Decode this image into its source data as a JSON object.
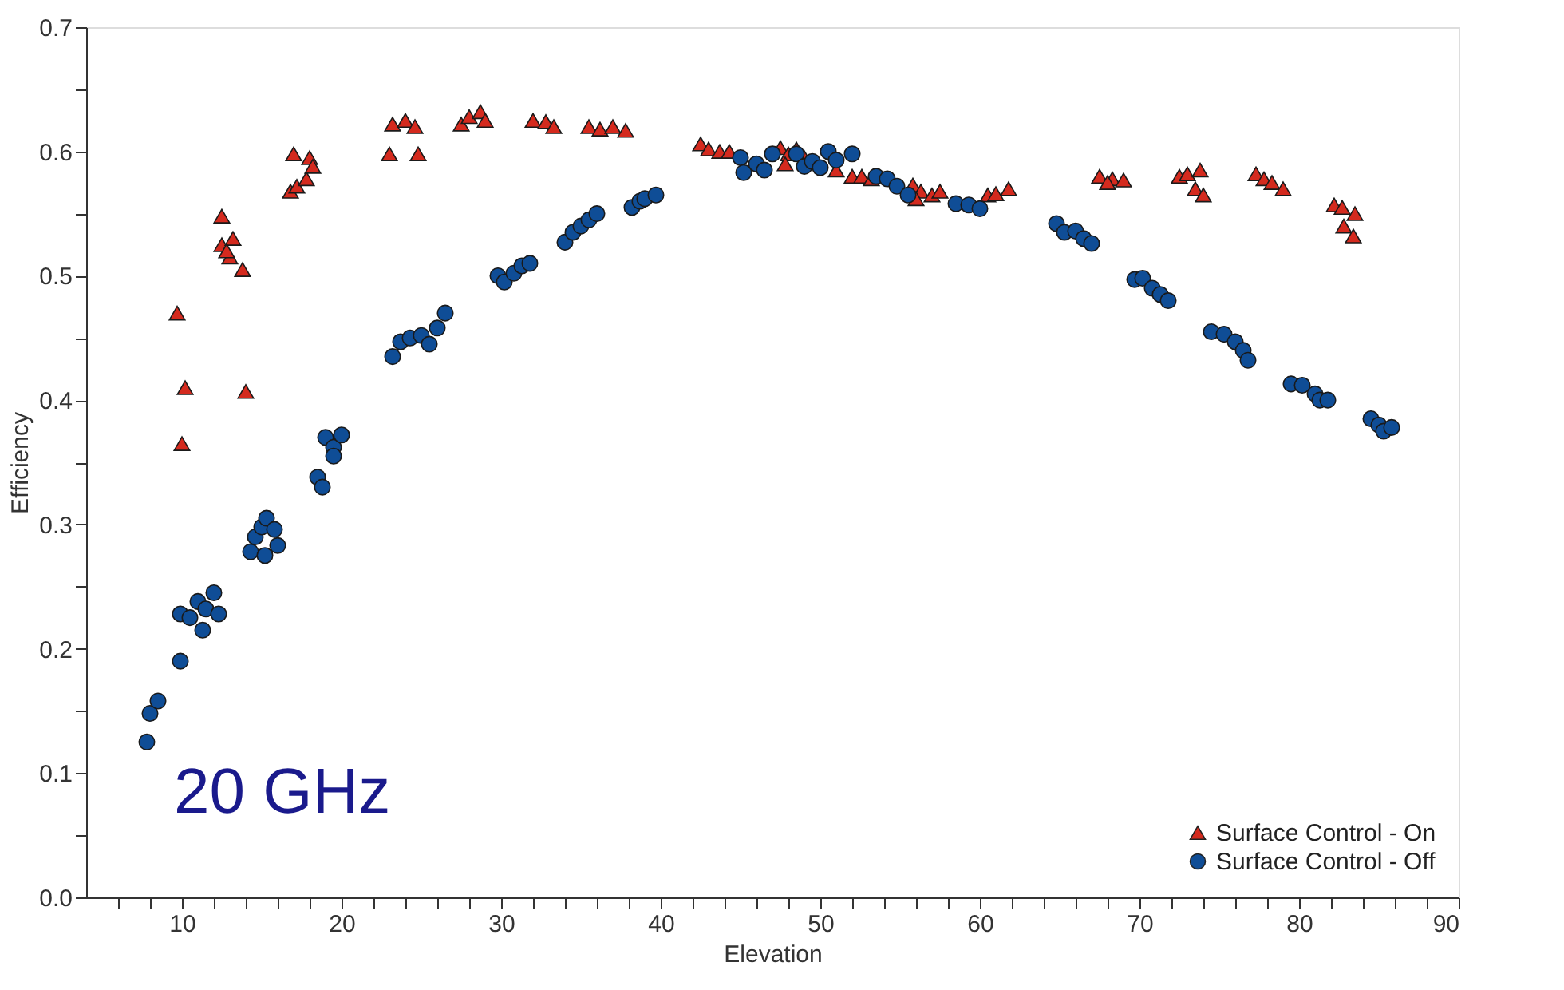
{
  "chart_data": {
    "type": "scatter",
    "xlabel": "Elevation",
    "ylabel": "Efficiency",
    "annotations": [
      "20 GHz"
    ],
    "xlim": [
      4,
      90
    ],
    "ylim": [
      0,
      0.7
    ],
    "xticks": [
      {
        "value": 6,
        "label": null
      },
      {
        "value": 8,
        "label": null
      },
      10,
      {
        "value": 12,
        "label": null
      },
      {
        "value": 14,
        "label": null
      },
      {
        "value": 16,
        "label": null
      },
      {
        "value": 18,
        "label": null
      },
      20,
      {
        "value": 22,
        "label": null
      },
      {
        "value": 24,
        "label": null
      },
      {
        "value": 26,
        "label": null
      },
      {
        "value": 28,
        "label": null
      },
      30,
      {
        "value": 32,
        "label": null
      },
      {
        "value": 34,
        "label": null
      },
      {
        "value": 36,
        "label": null
      },
      {
        "value": 38,
        "label": null
      },
      40,
      {
        "value": 42,
        "label": null
      },
      {
        "value": 44,
        "label": null
      },
      {
        "value": 46,
        "label": null
      },
      {
        "value": 48,
        "label": null
      },
      50,
      {
        "value": 52,
        "label": null
      },
      {
        "value": 54,
        "label": null
      },
      {
        "value": 56,
        "label": null
      },
      {
        "value": 58,
        "label": null
      },
      60,
      {
        "value": 62,
        "label": null
      },
      {
        "value": 64,
        "label": null
      },
      {
        "value": 66,
        "label": null
      },
      {
        "value": 68,
        "label": null
      },
      70,
      {
        "value": 72,
        "label": null
      },
      {
        "value": 74,
        "label": null
      },
      {
        "value": 76,
        "label": null
      },
      {
        "value": 78,
        "label": null
      },
      80,
      {
        "value": 82,
        "label": null
      },
      {
        "value": 84,
        "label": null
      },
      {
        "value": 86,
        "label": null
      },
      {
        "value": 88,
        "label": null
      },
      90
    ],
    "yticks": [
      {
        "value": 0,
        "label": "0.0"
      },
      {
        "value": 0.05,
        "label": null
      },
      0.1,
      {
        "value": 0.15,
        "label": null
      },
      0.2,
      {
        "value": 0.25,
        "label": null
      },
      0.3,
      {
        "value": 0.35,
        "label": null
      },
      0.4,
      {
        "value": 0.45,
        "label": null
      },
      0.5,
      {
        "value": 0.55,
        "label": null
      },
      0.6,
      {
        "value": 0.65,
        "label": null
      },
      0.7
    ],
    "grid": false,
    "legend": "bottom right",
    "series": [
      {
        "name": "Surface Control - On",
        "color": "#d42a1e",
        "marker": "triangle",
        "x": [
          9.7,
          10.2,
          10.0,
          14,
          12.5,
          12.5,
          13.2,
          13,
          13.8,
          12.8,
          16.8,
          17.2,
          17.8,
          17,
          18,
          18.2,
          23,
          24.8,
          23.2,
          24,
          24.6,
          27.5,
          28,
          28.7,
          29,
          32,
          32.8,
          33.3,
          35.5,
          36.2,
          37,
          37.8,
          42.5,
          43,
          43.7,
          44.3,
          47.5,
          48,
          48.5,
          47.8,
          49,
          51,
          52,
          52.6,
          53.2,
          55.8,
          56.3,
          57,
          56,
          57.5,
          60.5,
          61,
          61.8,
          67.5,
          68.3,
          69,
          68,
          72.5,
          73,
          73.8,
          73.5,
          74,
          77.3,
          77.8,
          78.3,
          79,
          82.2,
          82.7,
          83.5,
          82.8,
          83.4
        ],
        "values": [
          0.47,
          0.41,
          0.365,
          0.407,
          0.548,
          0.525,
          0.53,
          0.515,
          0.505,
          0.52,
          0.568,
          0.572,
          0.578,
          0.598,
          0.595,
          0.588,
          0.598,
          0.598,
          0.622,
          0.625,
          0.62,
          0.622,
          0.628,
          0.632,
          0.625,
          0.625,
          0.624,
          0.62,
          0.62,
          0.618,
          0.62,
          0.617,
          0.606,
          0.602,
          0.6,
          0.6,
          0.603,
          0.598,
          0.602,
          0.59,
          0.595,
          0.585,
          0.58,
          0.58,
          0.578,
          0.573,
          0.568,
          0.565,
          0.562,
          0.568,
          0.565,
          0.566,
          0.57,
          0.58,
          0.578,
          0.577,
          0.575,
          0.58,
          0.582,
          0.585,
          0.57,
          0.565,
          0.582,
          0.578,
          0.575,
          0.57,
          0.557,
          0.555,
          0.55,
          0.54,
          0.532
        ]
      },
      {
        "name": "Surface Control - Off",
        "color": "#0f4d96",
        "marker": "circle",
        "x": [
          7.8,
          8,
          8.5,
          9.9,
          9.9,
          10.5,
          11,
          11.5,
          11.3,
          12,
          12.3,
          14.3,
          14.6,
          15,
          15.3,
          15.8,
          15.2,
          16,
          18.5,
          18.8,
          19,
          19.5,
          19.5,
          20,
          23.2,
          23.7,
          24.3,
          25,
          25.5,
          26,
          26.5,
          29.8,
          30.2,
          30.8,
          31.3,
          31.8,
          34,
          34.5,
          35,
          35.5,
          36,
          38.2,
          38.7,
          39,
          39.7,
          45,
          45.2,
          46,
          46.5,
          47,
          48.5,
          49,
          49.5,
          50,
          50.5,
          51,
          52,
          53.5,
          54.2,
          54.8,
          55.5,
          58.5,
          59.3,
          60,
          64.8,
          65.3,
          66,
          66.5,
          67,
          69.7,
          70.2,
          70.8,
          71.3,
          71.8,
          74.5,
          75.3,
          76,
          76.5,
          76.8,
          79.5,
          80.2,
          81,
          81.3,
          81.8,
          84.5,
          85,
          85.3,
          85.8
        ],
        "values": [
          0.125,
          0.148,
          0.158,
          0.19,
          0.228,
          0.225,
          0.238,
          0.232,
          0.215,
          0.245,
          0.228,
          0.278,
          0.29,
          0.298,
          0.305,
          0.296,
          0.275,
          0.283,
          0.338,
          0.33,
          0.37,
          0.362,
          0.355,
          0.372,
          0.435,
          0.447,
          0.45,
          0.452,
          0.445,
          0.458,
          0.47,
          0.5,
          0.495,
          0.502,
          0.508,
          0.51,
          0.527,
          0.535,
          0.54,
          0.545,
          0.55,
          0.555,
          0.56,
          0.562,
          0.565,
          0.595,
          0.583,
          0.59,
          0.585,
          0.598,
          0.598,
          0.588,
          0.592,
          0.587,
          0.6,
          0.593,
          0.598,
          0.58,
          0.578,
          0.572,
          0.565,
          0.558,
          0.557,
          0.554,
          0.542,
          0.535,
          0.536,
          0.53,
          0.526,
          0.497,
          0.498,
          0.49,
          0.485,
          0.48,
          0.455,
          0.453,
          0.447,
          0.44,
          0.432,
          0.413,
          0.412,
          0.405,
          0.4,
          0.4,
          0.385,
          0.38,
          0.375,
          0.378
        ]
      }
    ]
  }
}
